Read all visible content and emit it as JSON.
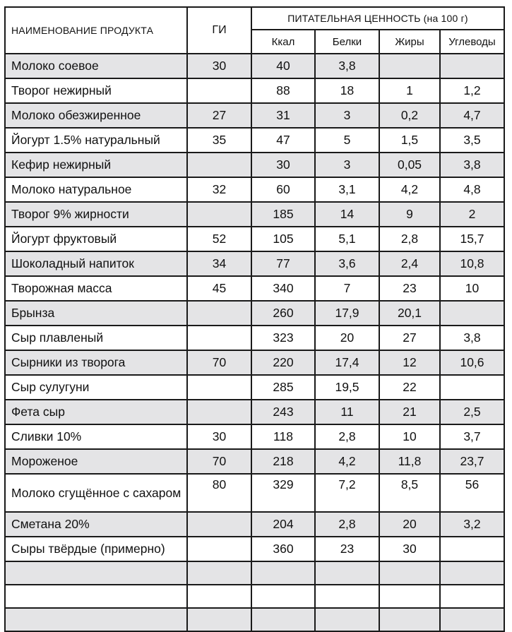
{
  "header": {
    "name_label": "НАИМЕНОВАНИЕ ПРОДУКТА",
    "gi_label": "ГИ",
    "group_label": "ПИТАТЕЛЬНАЯ ЦЕННОСТЬ (на 100 г)",
    "kcal_label": "Ккал",
    "protein_label": "Белки",
    "fat_label": "Жиры",
    "carbs_label": "Углеводы"
  },
  "rows": [
    {
      "name": "Молоко соевое",
      "gi": "30",
      "kcal": "40",
      "protein": "3,8",
      "fat": "",
      "carbs": ""
    },
    {
      "name": "Творог нежирный",
      "gi": "",
      "kcal": "88",
      "protein": "18",
      "fat": "1",
      "carbs": "1,2"
    },
    {
      "name": "Молоко обезжиренное",
      "gi": "27",
      "kcal": "31",
      "protein": "3",
      "fat": "0,2",
      "carbs": "4,7"
    },
    {
      "name": "Йогурт 1.5% натуральный",
      "gi": "35",
      "kcal": "47",
      "protein": "5",
      "fat": "1,5",
      "carbs": "3,5"
    },
    {
      "name": "Кефир нежирный",
      "gi": "",
      "kcal": "30",
      "protein": "3",
      "fat": "0,05",
      "carbs": "3,8"
    },
    {
      "name": "Молоко натуральное",
      "gi": "32",
      "kcal": "60",
      "protein": "3,1",
      "fat": "4,2",
      "carbs": "4,8"
    },
    {
      "name": "Творог 9% жирности",
      "gi": "",
      "kcal": "185",
      "protein": "14",
      "fat": "9",
      "carbs": "2"
    },
    {
      "name": "Йогурт фруктовый",
      "gi": "52",
      "kcal": "105",
      "protein": "5,1",
      "fat": "2,8",
      "carbs": "15,7"
    },
    {
      "name": "Шоколадный напиток",
      "gi": "34",
      "kcal": "77",
      "protein": "3,6",
      "fat": "2,4",
      "carbs": "10,8"
    },
    {
      "name": "Творожная масса",
      "gi": "45",
      "kcal": "340",
      "protein": "7",
      "fat": "23",
      "carbs": "10"
    },
    {
      "name": "Брынза",
      "gi": "",
      "kcal": "260",
      "protein": "17,9",
      "fat": "20,1",
      "carbs": ""
    },
    {
      "name": "Сыр плавленый",
      "gi": "",
      "kcal": "323",
      "protein": "20",
      "fat": "27",
      "carbs": "3,8"
    },
    {
      "name": "Сырники из творога",
      "gi": "70",
      "kcal": "220",
      "protein": "17,4",
      "fat": "12",
      "carbs": "10,6"
    },
    {
      "name": "Сыр сулугуни",
      "gi": "",
      "kcal": "285",
      "protein": "19,5",
      "fat": "22",
      "carbs": ""
    },
    {
      "name": "Фета сыр",
      "gi": "",
      "kcal": "243",
      "protein": "11",
      "fat": "21",
      "carbs": "2,5"
    },
    {
      "name": "Сливки 10%",
      "gi": "30",
      "kcal": "118",
      "protein": "2,8",
      "fat": "10",
      "carbs": "3,7"
    },
    {
      "name": "Мороженое",
      "gi": "70",
      "kcal": "218",
      "protein": "4,2",
      "fat": "11,8",
      "carbs": "23,7"
    },
    {
      "name": "Молоко сгущённое с сахаром",
      "gi": "80",
      "kcal": "329",
      "protein": "7,2",
      "fat": "8,5",
      "carbs": "56"
    },
    {
      "name": "Сметана 20%",
      "gi": "",
      "kcal": "204",
      "protein": "2,8",
      "fat": "20",
      "carbs": "3,2"
    },
    {
      "name": "Сыры твёрдые (примерно)",
      "gi": "",
      "kcal": "360",
      "protein": "23",
      "fat": "30",
      "carbs": ""
    }
  ]
}
